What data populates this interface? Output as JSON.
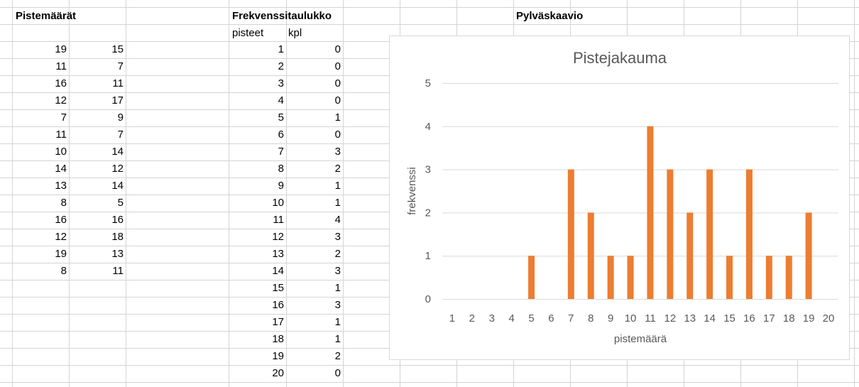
{
  "sheet": {
    "scores_header": "Pistemäärät",
    "freq_header": "Frekvenssitaulukko",
    "chart_header": "Pylväskaavio",
    "freq_col_points": "pisteet",
    "freq_col_count": "kpl",
    "scores_col1": [
      19,
      11,
      16,
      12,
      7,
      11,
      10,
      14,
      13,
      8,
      16,
      12,
      19,
      8
    ],
    "scores_col2": [
      15,
      7,
      11,
      17,
      9,
      7,
      14,
      12,
      14,
      5,
      16,
      18,
      13,
      11
    ],
    "freq_points": [
      1,
      2,
      3,
      4,
      5,
      6,
      7,
      8,
      9,
      10,
      11,
      12,
      13,
      14,
      15,
      16,
      17,
      18,
      19,
      20
    ],
    "freq_counts": [
      0,
      0,
      0,
      0,
      1,
      0,
      3,
      2,
      1,
      1,
      4,
      3,
      2,
      3,
      1,
      3,
      1,
      1,
      2,
      0
    ]
  },
  "chart_data": {
    "type": "bar",
    "title": "Pistejakauma",
    "xlabel": "pistemäärä",
    "ylabel": "frekvenssi",
    "categories": [
      "1",
      "2",
      "3",
      "4",
      "5",
      "6",
      "7",
      "8",
      "9",
      "10",
      "11",
      "12",
      "13",
      "14",
      "15",
      "16",
      "17",
      "18",
      "19",
      "20"
    ],
    "values": [
      0,
      0,
      0,
      0,
      1,
      0,
      3,
      2,
      1,
      1,
      4,
      3,
      2,
      3,
      1,
      3,
      1,
      1,
      2,
      0
    ],
    "ylim": [
      0,
      5
    ],
    "yticks": [
      "0",
      "1",
      "2",
      "3",
      "4",
      "5"
    ],
    "grid": true,
    "legend": "none",
    "bar_color": "#ed7d31"
  }
}
